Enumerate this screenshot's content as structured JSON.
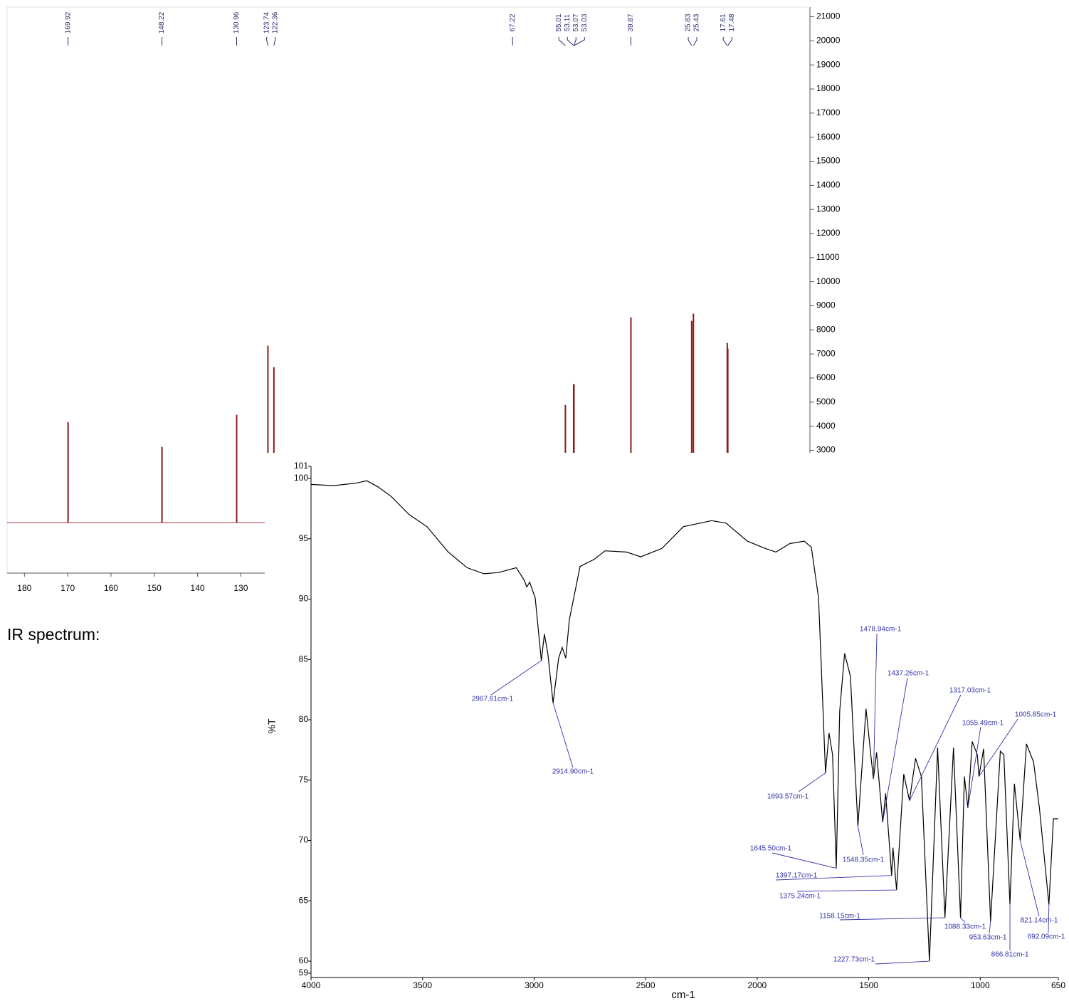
{
  "caption": "IR spectrum:",
  "chart_data": [
    {
      "type": "stick",
      "color": "#8b1a1a",
      "x": [
        169.92,
        148.22,
        130.96,
        123.74,
        122.36,
        67.22,
        55.01,
        53.11,
        53.07,
        53.03,
        39.87,
        25.83,
        25.43,
        17.61,
        17.48
      ],
      "values": [
        4170,
        3140,
        4470,
        7340,
        6450,
        2500,
        4880,
        5740,
        5740,
        5740,
        8520,
        8370,
        8670,
        7460,
        7220
      ],
      "xlim": [
        184,
        -1
      ],
      "xticks": [
        180,
        170,
        160,
        150,
        140,
        130
      ],
      "ylim": [
        -2100,
        21400
      ],
      "yticks": [
        3000,
        4000,
        5000,
        6000,
        7000,
        8000,
        9000,
        10000,
        11000,
        12000,
        13000,
        14000,
        15000,
        16000,
        17000,
        18000,
        19000,
        20000,
        21000
      ]
    },
    {
      "type": "line",
      "color": "#000000",
      "xlabel": "cm-1",
      "ylabel": "%T",
      "x": [
        4000,
        3900,
        3800,
        3750,
        3700,
        3640,
        3560,
        3480,
        3385,
        3300,
        3225,
        3160,
        3080,
        3045,
        3033,
        3020,
        2995,
        2967.61,
        2954,
        2938,
        2914.9,
        2890,
        2874,
        2858,
        2842,
        2794,
        2730,
        2682,
        2586,
        2522,
        2427,
        2331,
        2204,
        2140,
        2044,
        1964,
        1916,
        1853,
        1789,
        1757,
        1725,
        1693.57,
        1678,
        1662,
        1645.5,
        1630,
        1608,
        1582,
        1548.35,
        1512,
        1490,
        1478.94,
        1465,
        1437.26,
        1424,
        1397.17,
        1391,
        1375.24,
        1343,
        1317.03,
        1290,
        1264,
        1227.73,
        1191,
        1158.15,
        1120,
        1088.33,
        1071,
        1055.49,
        1036,
        1013,
        1005.85,
        985,
        953.63,
        910,
        894,
        866.81,
        847,
        821.14,
        793,
        761,
        735,
        692.09,
        672,
        650
      ],
      "values": [
        99.5,
        99.4,
        99.6,
        99.8,
        99.3,
        98.5,
        97.0,
        96.0,
        93.9,
        92.6,
        92.1,
        92.2,
        92.6,
        91.6,
        91.0,
        91.4,
        90.1,
        84.9,
        87.1,
        85.4,
        81.4,
        85.1,
        86.0,
        85.1,
        88.3,
        92.7,
        93.3,
        94.0,
        93.9,
        93.5,
        94.2,
        96.0,
        96.5,
        96.3,
        94.8,
        94.2,
        93.9,
        94.6,
        94.8,
        94.3,
        90.1,
        75.6,
        78.9,
        77.1,
        67.7,
        80.7,
        85.5,
        83.6,
        71.2,
        80.9,
        77.0,
        75.1,
        77.3,
        71.5,
        73.9,
        67.1,
        69.4,
        65.9,
        75.5,
        73.3,
        76.8,
        75.3,
        60.0,
        77.7,
        63.6,
        77.7,
        63.6,
        75.3,
        72.7,
        78.2,
        77.1,
        75.3,
        77.6,
        63.3,
        77.4,
        77.1,
        64.7,
        74.7,
        70.0,
        78.0,
        76.5,
        72.7,
        64.7,
        71.8,
        71.8
      ],
      "xlim": [
        4000,
        650
      ],
      "xticks": [
        4000,
        3500,
        3000,
        2500,
        2000,
        1500,
        1000,
        650
      ],
      "ylim": [
        59,
        101
      ],
      "yticks": [
        59,
        60,
        65,
        70,
        75,
        80,
        85,
        90,
        95,
        100,
        101
      ],
      "annotation_color": "#3333aa",
      "annotations": [
        {
          "value": 2967.61,
          "label": "2967.61cm-1"
        },
        {
          "value": 2914.9,
          "label": "2914.90cm-1"
        },
        {
          "value": 1693.57,
          "label": "1693.57cm-1"
        },
        {
          "value": 1645.5,
          "label": "1645.50cm-1"
        },
        {
          "value": 1548.35,
          "label": "1548.35cm-1"
        },
        {
          "value": 1478.94,
          "label": "1478.94cm-1"
        },
        {
          "value": 1437.26,
          "label": "1437.26cm-1"
        },
        {
          "value": 1397.17,
          "label": "1397.17cm-1"
        },
        {
          "value": 1375.24,
          "label": "1375.24cm-1"
        },
        {
          "value": 1317.03,
          "label": "1317.03cm-1"
        },
        {
          "value": 1227.73,
          "label": "1227.73cm-1"
        },
        {
          "value": 1158.15,
          "label": "1158.15cm-1"
        },
        {
          "value": 1088.33,
          "label": "1088.33cm-1"
        },
        {
          "value": 1055.49,
          "label": "1055.49cm-1"
        },
        {
          "value": 1005.85,
          "label": "1005.85cm-1"
        },
        {
          "value": 953.63,
          "label": "953.63cm-1"
        },
        {
          "value": 866.81,
          "label": "866.81cm-1"
        },
        {
          "value": 821.14,
          "label": "821.14cm-1"
        },
        {
          "value": 692.09,
          "label": "692.09cm-1"
        }
      ]
    }
  ]
}
